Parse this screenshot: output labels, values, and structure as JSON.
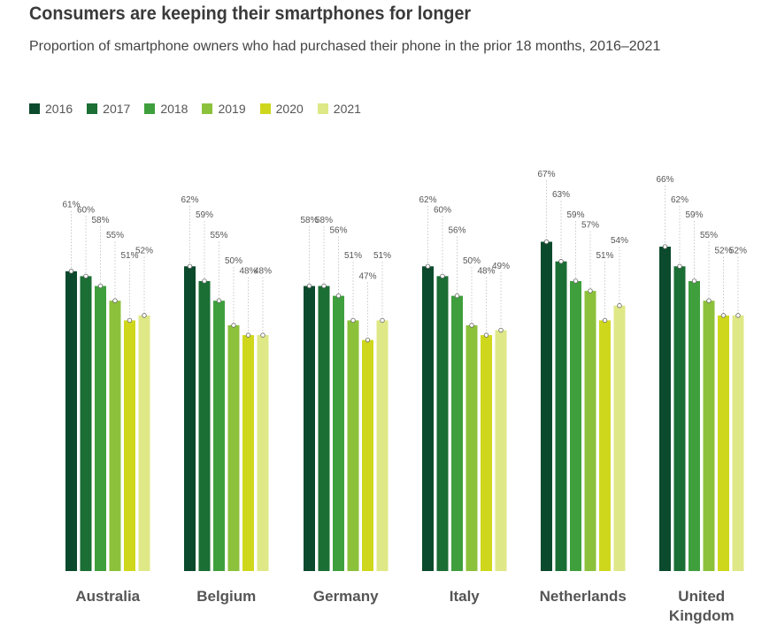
{
  "chart_data": {
    "type": "bar",
    "title": "Consumers are keeping their smartphones for longer",
    "subtitle": "Proportion of smartphone owners who had purchased their phone in the prior 18 months, 2016–2021",
    "categories": [
      "Australia",
      "Belgium",
      "Germany",
      "Italy",
      "Netherlands",
      "United Kingdom"
    ],
    "series": [
      {
        "name": "2016",
        "color": "#0b4a2c",
        "values": [
          61,
          62,
          58,
          62,
          67,
          66
        ]
      },
      {
        "name": "2017",
        "color": "#1b6e34",
        "values": [
          60,
          59,
          58,
          60,
          63,
          62
        ]
      },
      {
        "name": "2018",
        "color": "#3f9f3d",
        "values": [
          58,
          55,
          56,
          56,
          59,
          59
        ]
      },
      {
        "name": "2019",
        "color": "#8cc13b",
        "values": [
          55,
          50,
          51,
          50,
          57,
          55
        ]
      },
      {
        "name": "2020",
        "color": "#cfd71c",
        "values": [
          51,
          48,
          47,
          48,
          51,
          52
        ]
      },
      {
        "name": "2021",
        "color": "#dfe886",
        "values": [
          52,
          48,
          51,
          49,
          54,
          52
        ]
      }
    ],
    "value_suffix": "%",
    "ylim": [
      0,
      100
    ],
    "xlabel": "",
    "ylabel": "",
    "grid": false,
    "legend_position": "top-left"
  }
}
